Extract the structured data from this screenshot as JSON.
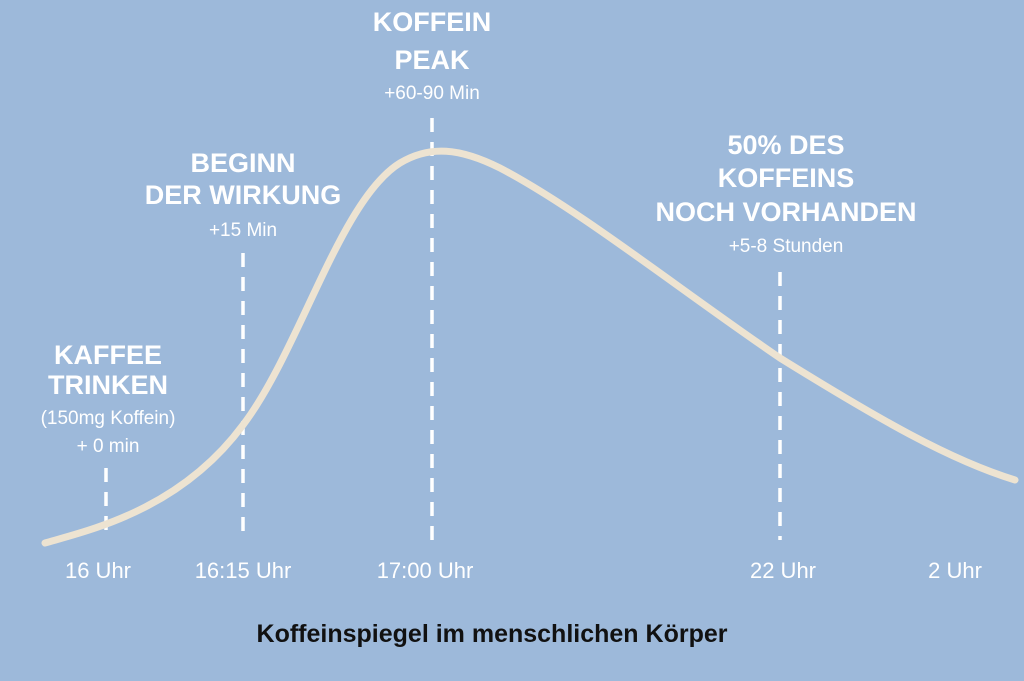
{
  "title": "Koffeinspiegel im menschlichen Körper",
  "annotations": [
    {
      "heading": [
        "KAFFEE",
        "TRINKEN"
      ],
      "details": [
        "(150mg Koffein)",
        "+ 0 min"
      ]
    },
    {
      "heading": [
        "BEGINN",
        "DER WIRKUNG"
      ],
      "details": [
        "+15 Min"
      ]
    },
    {
      "heading": [
        "KOFFEIN",
        "PEAK"
      ],
      "details": [
        "+60-90 Min"
      ]
    },
    {
      "heading": [
        "50% DES",
        "KOFFEINS",
        "NOCH VORHANDEN"
      ],
      "details": [
        "+5-8 Stunden"
      ]
    }
  ],
  "time_labels": [
    "16 Uhr",
    "16:15 Uhr",
    "17:00 Uhr",
    "22 Uhr",
    "2 Uhr"
  ]
}
